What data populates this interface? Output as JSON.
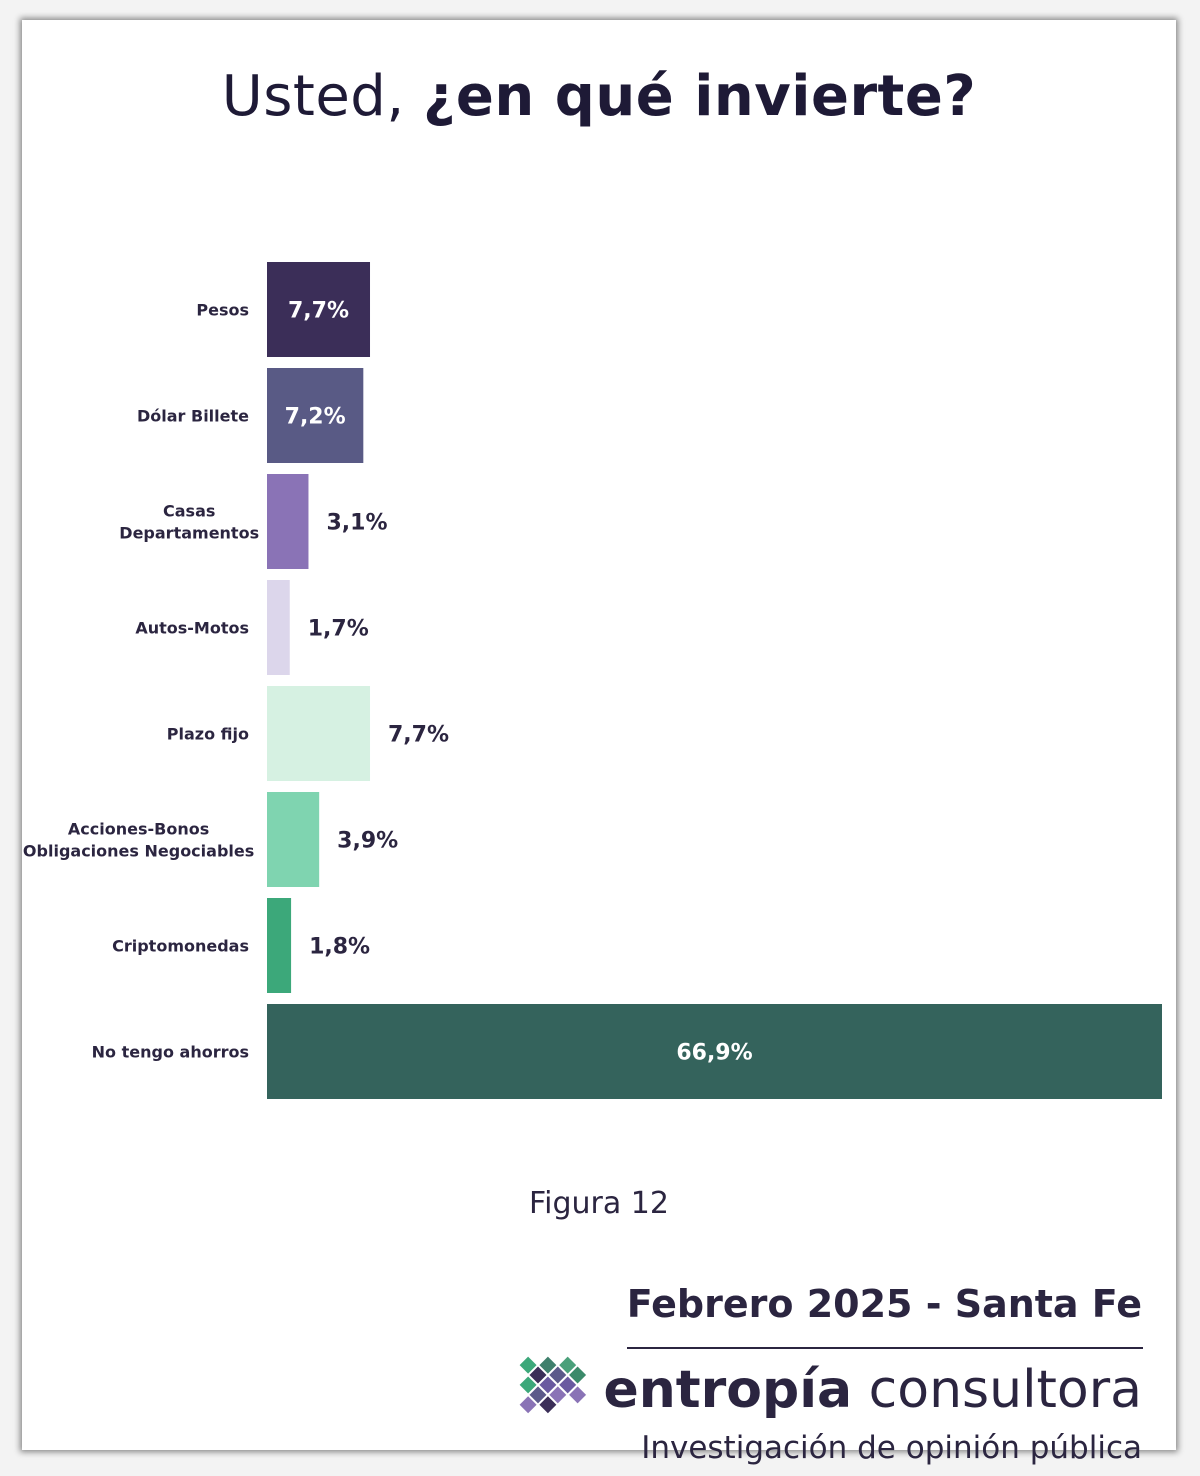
{
  "title": {
    "regular": "Usted, ",
    "bold": "¿en qué invierte?"
  },
  "caption": "Figura 12",
  "footer": {
    "date": "Febrero 2025 - Santa Fe",
    "brand_bold": "entropía",
    "brand_regular": " consultora",
    "tagline": "Investigación de opinión pública"
  },
  "chart_data": {
    "type": "bar",
    "orientation": "horizontal",
    "title": "Usted, ¿en qué invierte?",
    "categories": [
      [
        "Pesos"
      ],
      [
        "Dólar Billete"
      ],
      [
        "Casas",
        "Departamentos"
      ],
      [
        "Autos-Motos"
      ],
      [
        "Plazo fijo"
      ],
      [
        "Acciones-Bonos",
        "Obligaciones Negociables"
      ],
      [
        "Criptomonedas"
      ],
      [
        "No tengo ahorros"
      ]
    ],
    "values": [
      7.7,
      7.2,
      3.1,
      1.7,
      7.7,
      3.9,
      1.8,
      66.9
    ],
    "value_labels": [
      "7,7%",
      "7,2%",
      "3,1%",
      "1,7%",
      "7,7%",
      "3,9%",
      "1,8%",
      "66,9%"
    ],
    "colors": [
      "#3b2e58",
      "#595a85",
      "#8a73b6",
      "#dcd6eb",
      "#d6f1e2",
      "#7fd4b0",
      "#3ca87a",
      "#34635c"
    ],
    "label_inside": [
      true,
      true,
      false,
      false,
      false,
      false,
      false,
      true
    ],
    "xlim": [
      0,
      66.9
    ],
    "grid": false,
    "legend": "none"
  }
}
